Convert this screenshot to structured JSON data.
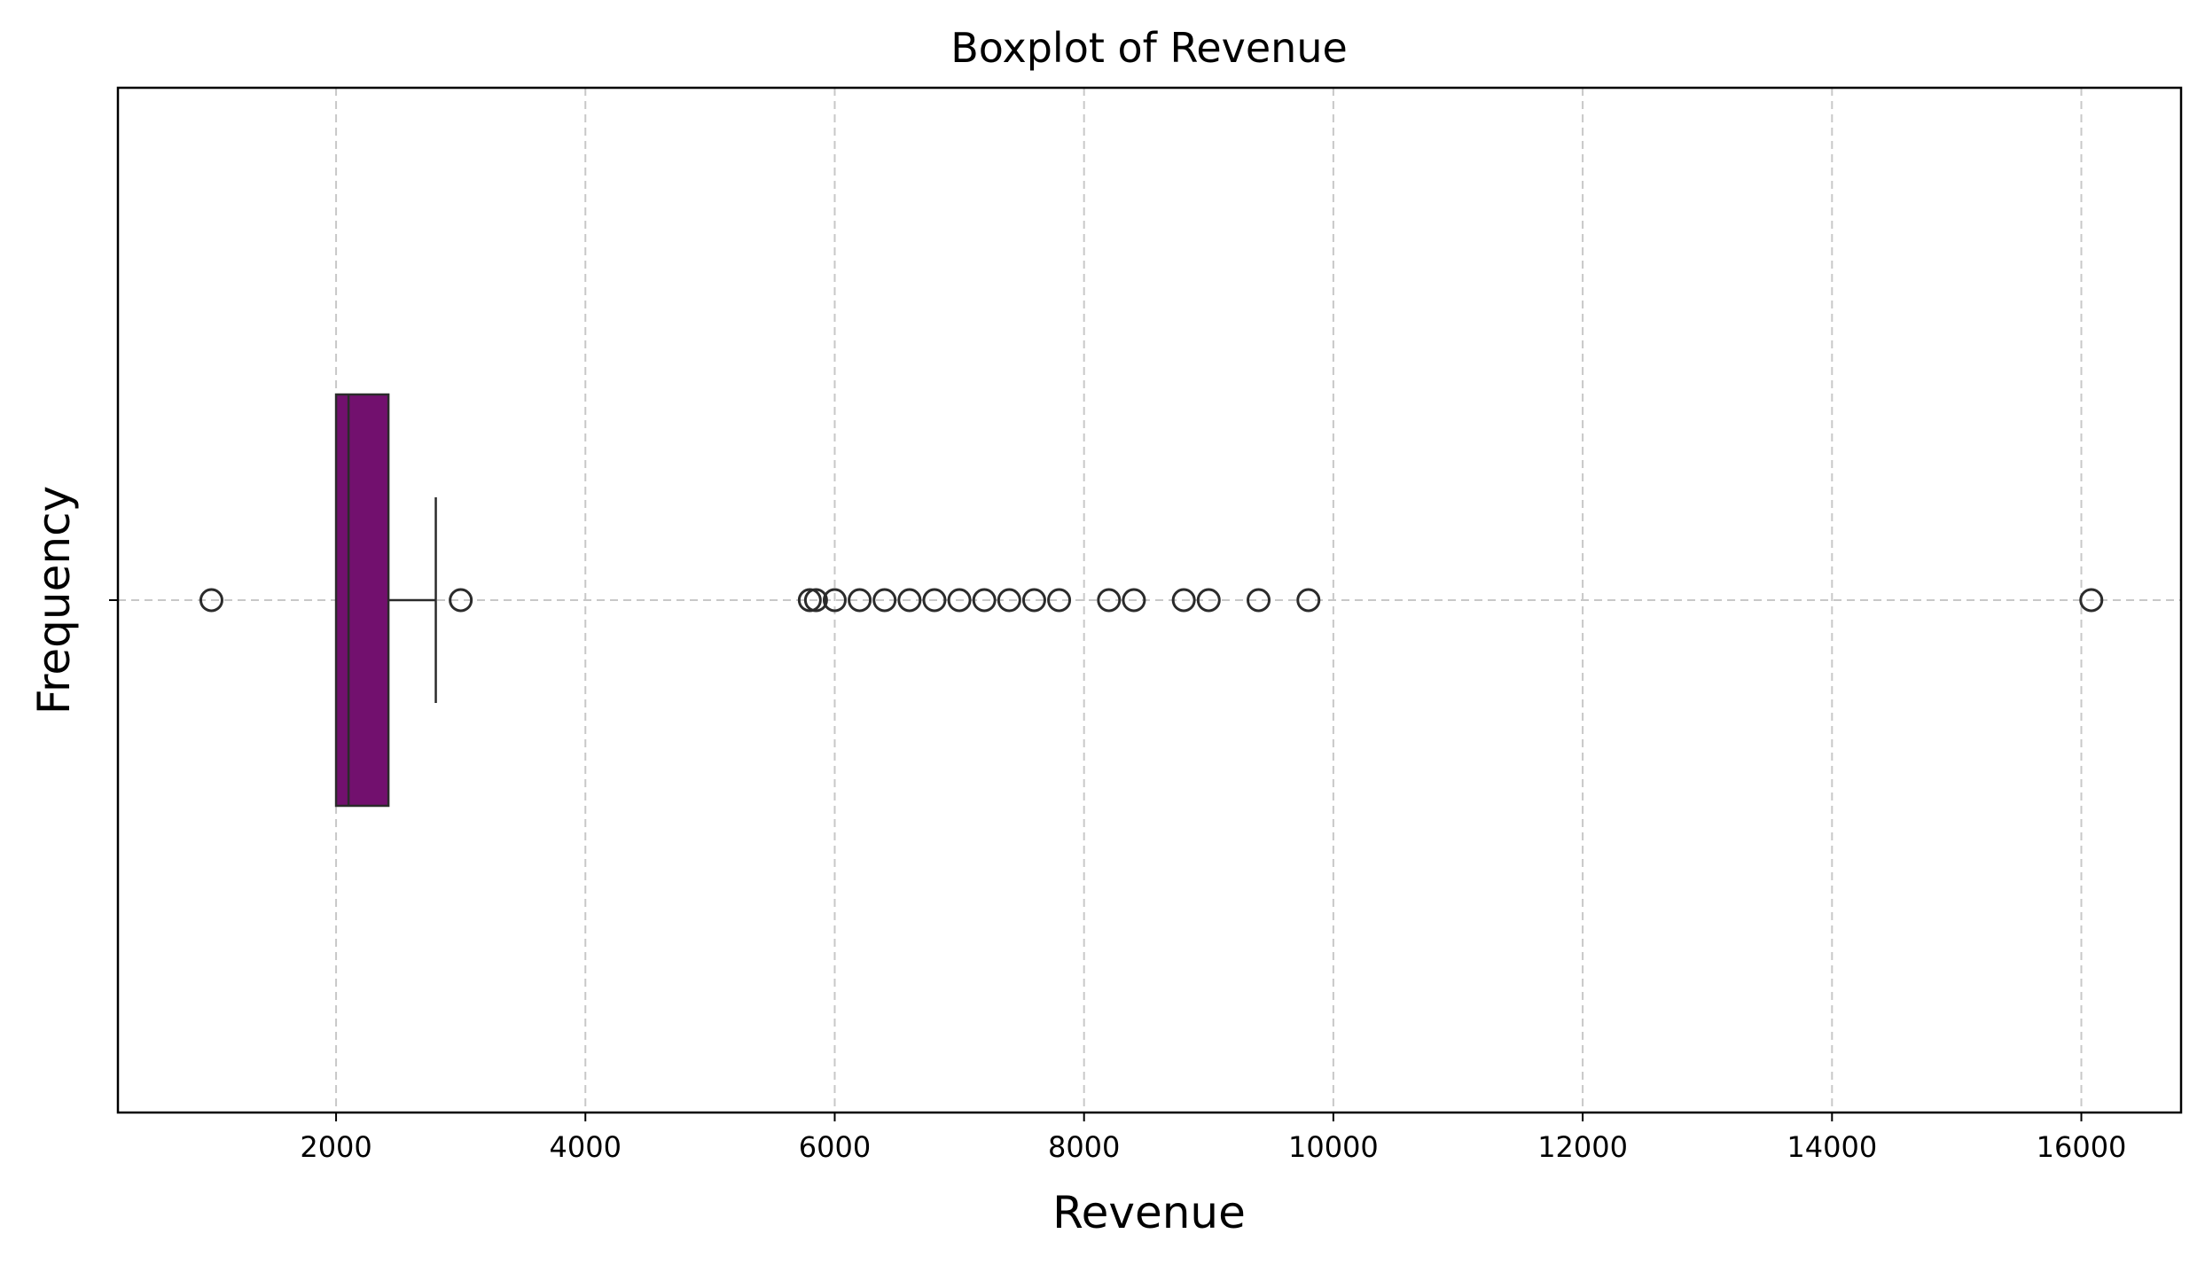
{
  "chart_data": {
    "type": "boxplot",
    "orientation": "horizontal",
    "title": "Boxplot of Revenue",
    "xlabel": "Revenue",
    "ylabel": "Frequency",
    "xlim": [
      250,
      16800
    ],
    "xticks": [
      2000,
      4000,
      6000,
      8000,
      10000,
      12000,
      14000,
      16000
    ],
    "grid": true,
    "box": {
      "whisker_low": 2000,
      "q1": 2000,
      "median": 2100,
      "q3": 2420,
      "whisker_high": 2800,
      "color": "#72106e",
      "edge_color": "#2b2b2b"
    },
    "outliers": [
      1000,
      3000,
      5800,
      5850,
      6000,
      6200,
      6400,
      6600,
      6800,
      7000,
      7200,
      7400,
      7600,
      7800,
      8200,
      8400,
      8800,
      9000,
      9400,
      9800,
      16080
    ]
  }
}
